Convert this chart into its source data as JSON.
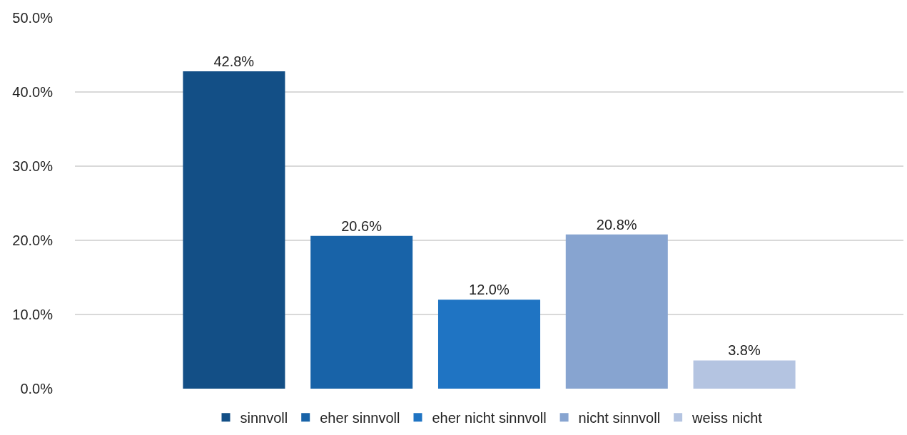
{
  "chart_data": {
    "type": "bar",
    "categories": [
      null
    ],
    "series": [
      {
        "name": "sinnvoll",
        "color": "#134f86",
        "values": [
          42.8
        ],
        "value_labels": [
          "42.8%"
        ]
      },
      {
        "name": "eher sinnvoll",
        "color": "#1863a8",
        "values": [
          20.6
        ],
        "value_labels": [
          "20.6%"
        ]
      },
      {
        "name": "eher nicht sinnvoll",
        "color": "#1f74c3",
        "values": [
          12.0
        ],
        "value_labels": [
          "12.0%"
        ]
      },
      {
        "name": "nicht sinnvoll",
        "color": "#87a4d0",
        "values": [
          20.8
        ],
        "value_labels": [
          "20.8%"
        ]
      },
      {
        "name": "weiss nicht",
        "color": "#b4c4e1",
        "values": [
          3.8
        ],
        "value_labels": [
          "3.8%"
        ]
      }
    ],
    "ylim": [
      0,
      50
    ],
    "yticks": [
      {
        "value": 0,
        "label": "0.0%"
      },
      {
        "value": 10,
        "label": "10.0%"
      },
      {
        "value": 20,
        "label": "20.0%"
      },
      {
        "value": 30,
        "label": "30.0%"
      },
      {
        "value": 40,
        "label": "40.0%"
      },
      {
        "value": 50,
        "label": "50.0%"
      }
    ],
    "grid": "y",
    "legend": "bottom"
  }
}
